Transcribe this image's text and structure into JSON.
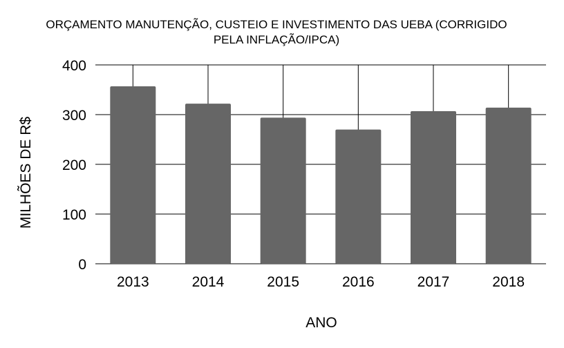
{
  "chart_data": {
    "type": "bar",
    "title": "ORÇAMENTO MANUTENÇÃO, CUSTEIO E INVESTIMENTO DAS UEBA (CORRIGIDO PELA INFLAÇÃO/IPCA)",
    "title_lines": [
      "ORÇAMENTO MANUTENÇÃO, CUSTEIO E INVESTIMENTO DAS UEBA (CORRIGIDO",
      "PELA INFLAÇÃO/IPCA)"
    ],
    "xlabel": "ANO",
    "ylabel": "MILHÕES DE R$",
    "categories": [
      "2013",
      "2014",
      "2015",
      "2016",
      "2017",
      "2018"
    ],
    "values": [
      357,
      322,
      294,
      270,
      307,
      314
    ],
    "ylim": [
      0,
      400
    ],
    "yticks": [
      0,
      100,
      200,
      300,
      400
    ],
    "grid": true,
    "colors": {
      "bar": "#666666",
      "grid": "#000000",
      "background": "#ffffff"
    }
  }
}
